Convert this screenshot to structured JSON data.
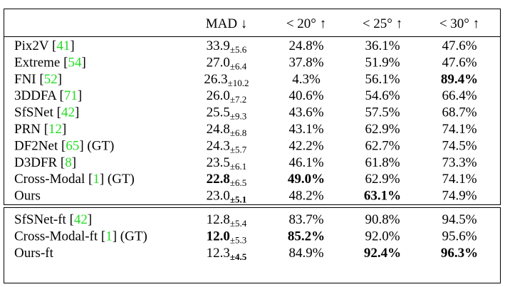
{
  "header": [
    "MAD ↓",
    "< 20° ↑",
    "< 25° ↑",
    "< 30° ↑"
  ],
  "sections": [
    {
      "rows": [
        {
          "method": [
            "Pix2V [",
            "41",
            "]"
          ],
          "mad": "33.9",
          "std": "±5.6",
          "p20": "24.8%",
          "p25": "36.1%",
          "p30": "47.6%",
          "bold": []
        },
        {
          "method": [
            "Extreme [",
            "54",
            "]"
          ],
          "mad": "27.0",
          "std": "±6.4",
          "p20": "37.8%",
          "p25": "51.9%",
          "p30": "47.6%",
          "bold": []
        },
        {
          "method": [
            "FNI [",
            "52",
            "]"
          ],
          "mad": "26.3",
          "std": "±10.2",
          "p20": "4.3%",
          "p25": "56.1%",
          "p30": "89.4%",
          "bold": [
            "p30"
          ]
        },
        {
          "method": [
            "3DDFA [",
            "71",
            "]"
          ],
          "mad": "26.0",
          "std": "±7.2",
          "p20": "40.6%",
          "p25": "54.6%",
          "p30": "66.4%",
          "bold": []
        },
        {
          "method": [
            "SfSNet [",
            "42",
            "]"
          ],
          "mad": "25.5",
          "std": "±9.3",
          "p20": "43.6%",
          "p25": "57.5%",
          "p30": "68.7%",
          "bold": []
        },
        {
          "method": [
            "PRN [",
            "12",
            "]"
          ],
          "mad": "24.8",
          "std": "±6.8",
          "p20": "43.1%",
          "p25": "62.9%",
          "p30": "74.1%",
          "bold": []
        },
        {
          "method": [
            "DF2Net [",
            "65",
            "] (GT)"
          ],
          "mad": "24.3",
          "std": "±5.7",
          "p20": "42.2%",
          "p25": "62.7%",
          "p30": "74.5%",
          "bold": []
        },
        {
          "method": [
            "D3DFR [",
            "8",
            "]"
          ],
          "mad": "23.5",
          "std": "±6.1",
          "p20": "46.1%",
          "p25": "61.8%",
          "p30": "73.3%",
          "bold": []
        },
        {
          "method": [
            "Cross-Modal [",
            "1",
            "] (GT)"
          ],
          "mad": "22.8",
          "std": "±6.5",
          "p20": "49.0%",
          "p25": "62.9%",
          "p30": "74.1%",
          "bold": [
            "mad",
            "p20"
          ]
        },
        {
          "method": [
            "Ours"
          ],
          "mad": "23.0",
          "std": "±5.1",
          "p20": "48.2%",
          "p25": "63.1%",
          "p30": "74.9%",
          "bold": [
            "std",
            "p25"
          ]
        }
      ]
    },
    {
      "rows": [
        {
          "method": [
            "SfSNet-ft [",
            "42",
            "]"
          ],
          "mad": "12.8",
          "std": "±5.4",
          "p20": "83.7%",
          "p25": "90.8%",
          "p30": "94.5%",
          "bold": []
        },
        {
          "method": [
            "Cross-Modal-ft [",
            "1",
            "] (GT)"
          ],
          "mad": "12.0",
          "std": "±5.3",
          "p20": "85.2%",
          "p25": "92.0%",
          "p30": "95.6%",
          "bold": [
            "mad",
            "p20"
          ]
        },
        {
          "method": [
            "Ours-ft"
          ],
          "mad": "12.3",
          "std": "±4.5",
          "p20": "84.9%",
          "p25": "92.4%",
          "p30": "96.3%",
          "bold": [
            "std",
            "p25",
            "p30"
          ]
        }
      ]
    }
  ]
}
